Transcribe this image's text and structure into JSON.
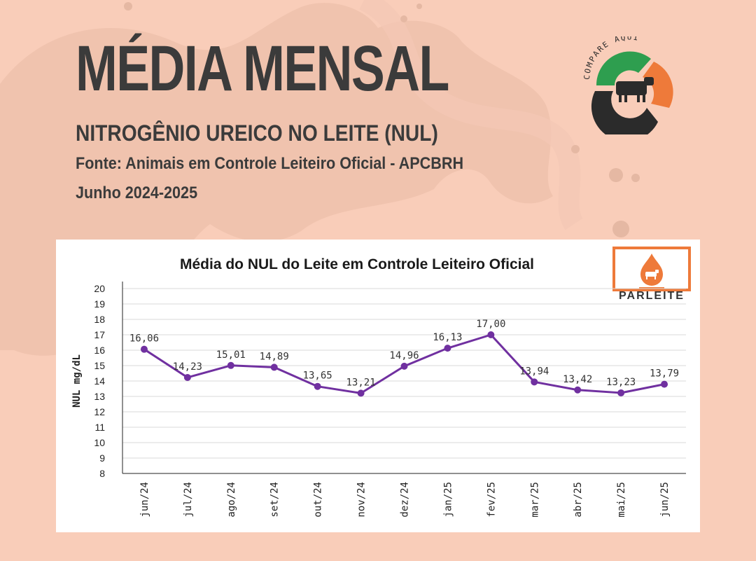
{
  "header": {
    "title": "MÉDIA MENSAL",
    "subtitle": "NITROGÊNIO UREICO NO LEITE (NUL)",
    "source": "Fonte: Animais em Controle Leiteiro Oficial - APCBRH",
    "period": "Junho 2024-2025"
  },
  "logos": {
    "compare_text": "COMPARE AQUI",
    "parleite_text": "PARLEITE"
  },
  "colors": {
    "background": "#f9cdb9",
    "title_text": "#3b3b3b",
    "series_line": "#7030a0",
    "logo_green": "#2e9e4f",
    "logo_orange": "#ee7a3a",
    "logo_dark": "#2b2b2b"
  },
  "chart_data": {
    "type": "line",
    "title": "Média do NUL do Leite em Controle Leiteiro Oficial",
    "xlabel": "",
    "ylabel": "NUL mg/dL",
    "ylim": [
      8,
      20
    ],
    "yticks": [
      "20",
      "19",
      "18",
      "17",
      "16",
      "15",
      "14",
      "13",
      "12",
      "11",
      "10",
      "9",
      "8"
    ],
    "categories": [
      "jun/24",
      "jul/24",
      "ago/24",
      "set/24",
      "out/24",
      "nov/24",
      "dez/24",
      "jan/25",
      "fev/25",
      "mar/25",
      "abr/25",
      "mai/25",
      "jun/25"
    ],
    "values": [
      16.06,
      14.23,
      15.01,
      14.89,
      13.65,
      13.21,
      14.96,
      16.13,
      17.0,
      13.94,
      13.42,
      13.23,
      13.79
    ],
    "data_labels": [
      "16,06",
      "14,23",
      "15,01",
      "14,89",
      "13,65",
      "13,21",
      "14,96",
      "16,13",
      "17,00",
      "13,94",
      "13,42",
      "13,23",
      "13,79"
    ],
    "grid": true
  }
}
